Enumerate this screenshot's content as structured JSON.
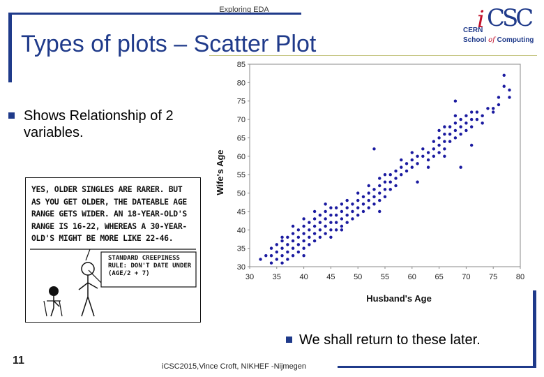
{
  "header": {
    "text": "Exploring EDA"
  },
  "slide": {
    "title": "Types of plots – Scatter Plot",
    "bullet_1": "Shows Relationship of 2 variables.",
    "bullet_2": "We shall return to these later.",
    "page_number": "11",
    "footer": "iCSC2015,Vince Croft, NIKHEF -Nijmegen"
  },
  "logo": {
    "mark_i": "i",
    "mark_csc": "CSC",
    "line_1": "CERN",
    "line_2a": "School",
    "line_2b": "of",
    "line_2c": "Computing"
  },
  "comic": {
    "speech": "YES, OLDER SINGLES ARE RARER. BUT AS YOU GET OLDER, THE DATEABLE AGE RANGE GETS WIDER. AN 18-YEAR-OLD'S RANGE IS 16-22, WHEREAS A 30-YEAR-OLD'S MIGHT BE MORE LIKE 22-46.",
    "rule": "STANDARD CREEPINESS RULE: DON'T DATE UNDER (AGE/2 + 7)"
  },
  "colors": {
    "brand_blue": "#1f3a8a",
    "point_blue": "#1a1aa0",
    "logo_red": "#c0102a"
  },
  "chart_data": {
    "type": "scatter",
    "xlabel": "Husband's Age",
    "ylabel": "Wife's Age",
    "xlim": [
      30,
      80
    ],
    "ylim": [
      30,
      85
    ],
    "x_ticks": [
      "30",
      "35",
      "40",
      "45",
      "50",
      "55",
      "60",
      "65",
      "70",
      "75",
      "80"
    ],
    "y_ticks": [
      "30",
      "35",
      "40",
      "45",
      "50",
      "55",
      "60",
      "65",
      "70",
      "75",
      "80",
      "85"
    ],
    "x_tick_values": [
      30,
      35,
      40,
      45,
      50,
      55,
      60,
      65,
      70,
      75,
      80
    ],
    "y_tick_values": [
      30,
      35,
      40,
      45,
      50,
      55,
      60,
      65,
      70,
      75,
      80,
      85
    ],
    "points": [
      [
        32,
        32
      ],
      [
        33,
        33
      ],
      [
        34,
        31
      ],
      [
        34,
        33
      ],
      [
        34,
        35
      ],
      [
        35,
        32
      ],
      [
        35,
        34
      ],
      [
        35,
        36
      ],
      [
        36,
        31
      ],
      [
        36,
        33
      ],
      [
        36,
        35
      ],
      [
        36,
        37
      ],
      [
        37,
        32
      ],
      [
        37,
        34
      ],
      [
        37,
        36
      ],
      [
        37,
        38
      ],
      [
        38,
        33
      ],
      [
        38,
        35
      ],
      [
        38,
        37
      ],
      [
        38,
        39
      ],
      [
        38,
        41
      ],
      [
        39,
        34
      ],
      [
        39,
        36
      ],
      [
        39,
        38
      ],
      [
        39,
        40
      ],
      [
        40,
        35
      ],
      [
        40,
        37
      ],
      [
        40,
        39
      ],
      [
        40,
        41
      ],
      [
        40,
        43
      ],
      [
        41,
        36
      ],
      [
        41,
        38
      ],
      [
        41,
        40
      ],
      [
        41,
        42
      ],
      [
        42,
        37
      ],
      [
        42,
        39
      ],
      [
        42,
        41
      ],
      [
        42,
        43
      ],
      [
        42,
        45
      ],
      [
        43,
        38
      ],
      [
        43,
        40
      ],
      [
        43,
        42
      ],
      [
        43,
        44
      ],
      [
        44,
        39
      ],
      [
        44,
        41
      ],
      [
        44,
        43
      ],
      [
        44,
        45
      ],
      [
        44,
        47
      ],
      [
        45,
        38
      ],
      [
        45,
        40
      ],
      [
        45,
        42
      ],
      [
        45,
        44
      ],
      [
        45,
        46
      ],
      [
        46,
        40
      ],
      [
        46,
        42
      ],
      [
        46,
        44
      ],
      [
        46,
        46
      ],
      [
        47,
        41
      ],
      [
        47,
        43
      ],
      [
        47,
        45
      ],
      [
        47,
        47
      ],
      [
        48,
        42
      ],
      [
        48,
        44
      ],
      [
        48,
        46
      ],
      [
        48,
        48
      ],
      [
        49,
        43
      ],
      [
        49,
        45
      ],
      [
        49,
        47
      ],
      [
        50,
        44
      ],
      [
        50,
        46
      ],
      [
        50,
        48
      ],
      [
        50,
        50
      ],
      [
        51,
        45
      ],
      [
        51,
        47
      ],
      [
        51,
        49
      ],
      [
        52,
        46
      ],
      [
        52,
        48
      ],
      [
        52,
        50
      ],
      [
        52,
        52
      ],
      [
        53,
        47
      ],
      [
        53,
        49
      ],
      [
        53,
        51
      ],
      [
        53,
        62
      ],
      [
        54,
        48
      ],
      [
        54,
        50
      ],
      [
        54,
        52
      ],
      [
        54,
        54
      ],
      [
        55,
        49
      ],
      [
        55,
        51
      ],
      [
        55,
        53
      ],
      [
        55,
        55
      ],
      [
        56,
        53
      ],
      [
        56,
        55
      ],
      [
        57,
        52
      ],
      [
        57,
        54
      ],
      [
        57,
        56
      ],
      [
        58,
        55
      ],
      [
        58,
        57
      ],
      [
        58,
        59
      ],
      [
        59,
        56
      ],
      [
        59,
        58
      ],
      [
        60,
        57
      ],
      [
        60,
        59
      ],
      [
        60,
        61
      ],
      [
        61,
        58
      ],
      [
        61,
        60
      ],
      [
        61,
        53
      ],
      [
        62,
        60
      ],
      [
        62,
        62
      ],
      [
        63,
        57
      ],
      [
        63,
        59
      ],
      [
        63,
        61
      ],
      [
        64,
        60
      ],
      [
        64,
        62
      ],
      [
        64,
        64
      ],
      [
        65,
        61
      ],
      [
        65,
        63
      ],
      [
        65,
        65
      ],
      [
        65,
        67
      ],
      [
        66,
        62
      ],
      [
        66,
        64
      ],
      [
        66,
        66
      ],
      [
        66,
        68
      ],
      [
        67,
        64
      ],
      [
        67,
        66
      ],
      [
        67,
        68
      ],
      [
        68,
        65
      ],
      [
        68,
        67
      ],
      [
        68,
        69
      ],
      [
        68,
        71
      ],
      [
        69,
        66
      ],
      [
        69,
        68
      ],
      [
        69,
        70
      ],
      [
        69,
        57
      ],
      [
        70,
        67
      ],
      [
        70,
        69
      ],
      [
        70,
        71
      ],
      [
        71,
        68
      ],
      [
        71,
        70
      ],
      [
        71,
        72
      ],
      [
        71,
        63
      ],
      [
        72,
        70
      ],
      [
        72,
        72
      ],
      [
        73,
        71
      ],
      [
        74,
        73
      ],
      [
        75,
        72
      ],
      [
        76,
        74
      ],
      [
        76,
        76
      ],
      [
        77,
        79
      ],
      [
        77,
        82
      ],
      [
        78,
        76
      ],
      [
        78,
        78
      ],
      [
        68,
        75
      ],
      [
        66,
        60
      ],
      [
        73,
        69
      ],
      [
        75,
        73
      ],
      [
        56,
        51
      ],
      [
        54,
        45
      ],
      [
        47,
        40
      ],
      [
        36,
        38
      ],
      [
        40,
        33
      ]
    ]
  }
}
